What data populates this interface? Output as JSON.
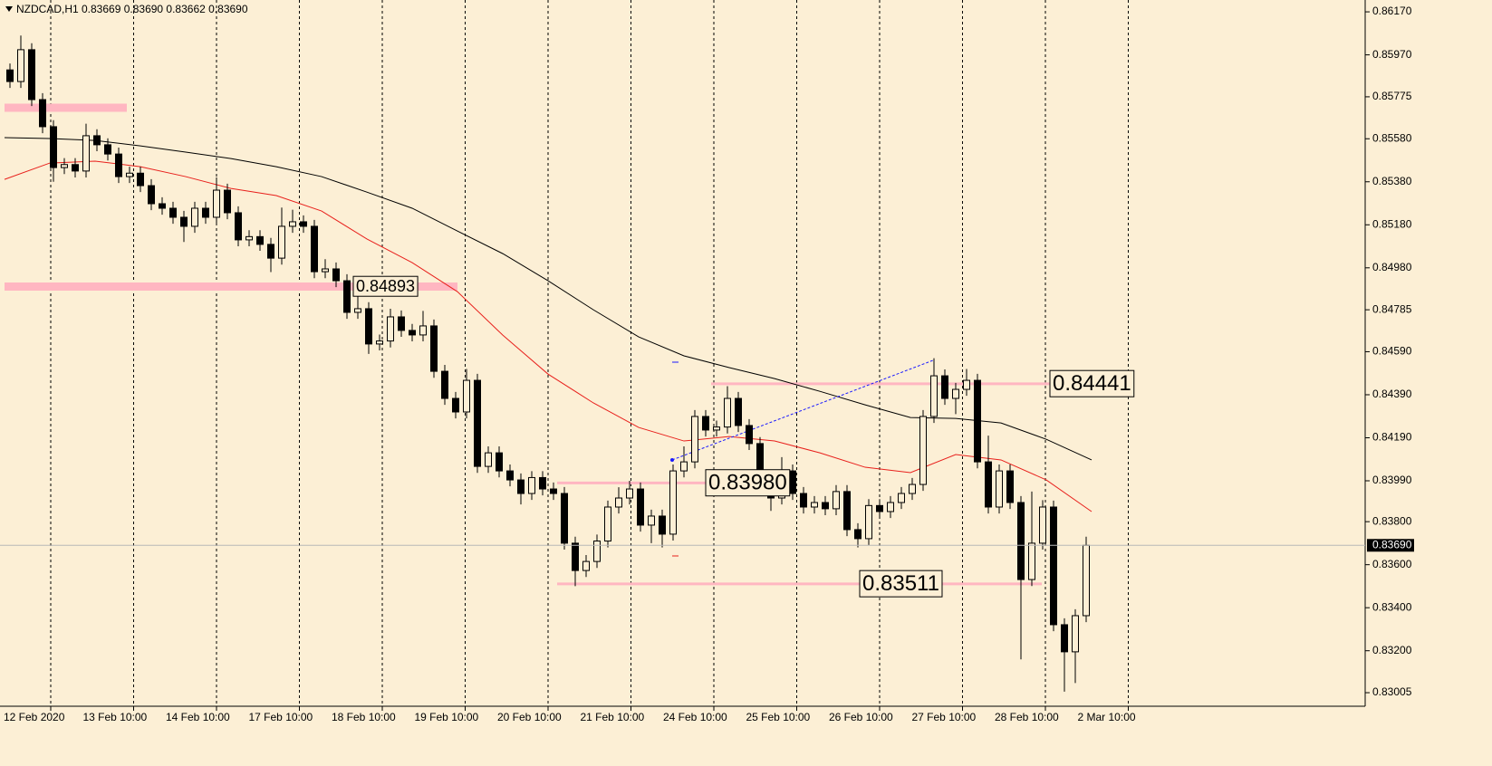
{
  "chart_data": {
    "type": "candlestick",
    "symbol": "NZDCAD,H1",
    "header_prices": "0.83669 0.83690 0.83662 0.83690",
    "ylim": [
      0.82942,
      0.86225
    ],
    "yticks": [
      {
        "value": 0.8617,
        "label": "0.86170"
      },
      {
        "value": 0.8597,
        "label": "0.85970"
      },
      0.85775,
      {
        "value": 0.8558,
        "label": "0.85580"
      },
      {
        "value": 0.8538,
        "label": "0.85380"
      },
      {
        "value": 0.8518,
        "label": "0.85180"
      },
      {
        "value": 0.8498,
        "label": "0.84980"
      },
      0.84785,
      {
        "value": 0.8459,
        "label": "0.84590"
      },
      {
        "value": 0.8439,
        "label": "0.84390"
      },
      {
        "value": 0.8419,
        "label": "0.84190"
      },
      {
        "value": 0.8399,
        "label": "0.83990"
      },
      {
        "value": 0.838,
        "label": "0.83800"
      },
      {
        "value": 0.836,
        "label": "0.83600"
      },
      {
        "value": 0.834,
        "label": "0.83400"
      },
      {
        "value": 0.832,
        "label": "0.83200"
      },
      0.83005
    ],
    "time_labels": [
      "12 Feb 2020",
      "13 Feb 10:00",
      "14 Feb 10:00",
      "17 Feb 10:00",
      "18 Feb 10:00",
      "19 Feb 10:00",
      "20 Feb 10:00",
      "21 Feb 10:00",
      "24 Feb 10:00",
      "25 Feb 10:00",
      "26 Feb 10:00",
      "27 Feb 10:00",
      "28 Feb 10:00",
      "2 Mar 10:00"
    ],
    "candles": [
      [
        0.859,
        0.8593,
        0.85816,
        0.85846
      ],
      [
        0.85846,
        0.8606,
        0.85816,
        0.85994
      ],
      [
        0.85994,
        0.86024,
        0.85732,
        0.85762
      ],
      [
        0.85762,
        0.85792,
        0.85606,
        0.85636
      ],
      [
        0.85636,
        0.85666,
        0.8538,
        0.85446
      ],
      [
        0.85446,
        0.8549,
        0.85416,
        0.8546
      ],
      [
        0.8546,
        0.8549,
        0.854,
        0.8543
      ],
      [
        0.8543,
        0.8565,
        0.854,
        0.85594
      ],
      [
        0.85594,
        0.85624,
        0.85522,
        0.85552
      ],
      [
        0.85552,
        0.85582,
        0.85479,
        0.85509
      ],
      [
        0.85509,
        0.85539,
        0.85374,
        0.85404
      ],
      [
        0.85404,
        0.8545,
        0.85374,
        0.8542
      ],
      [
        0.8542,
        0.8545,
        0.85332,
        0.85362
      ],
      [
        0.85362,
        0.85392,
        0.85248,
        0.85278
      ],
      [
        0.85278,
        0.85308,
        0.85227,
        0.85257
      ],
      [
        0.85257,
        0.85287,
        0.85185,
        0.85215
      ],
      [
        0.85215,
        0.85245,
        0.851,
        0.85173
      ],
      [
        0.85173,
        0.85287,
        0.85143,
        0.85257
      ],
      [
        0.85257,
        0.85287,
        0.85185,
        0.85215
      ],
      [
        0.85215,
        0.854,
        0.85185,
        0.85341
      ],
      [
        0.85341,
        0.85371,
        0.85206,
        0.85236
      ],
      [
        0.85236,
        0.85266,
        0.8508,
        0.8511
      ],
      [
        0.8511,
        0.85155,
        0.8508,
        0.85125
      ],
      [
        0.85125,
        0.85155,
        0.85059,
        0.85089
      ],
      [
        0.85089,
        0.85119,
        0.8496,
        0.85025
      ],
      [
        0.85025,
        0.8526,
        0.84995,
        0.85173
      ],
      [
        0.85173,
        0.8525,
        0.85143,
        0.85194
      ],
      [
        0.85194,
        0.85224,
        0.85143,
        0.85173
      ],
      [
        0.85173,
        0.85203,
        0.84932,
        0.84962
      ],
      [
        0.84962,
        0.8502,
        0.84932,
        0.84975
      ],
      [
        0.84975,
        0.85005,
        0.8489,
        0.8492
      ],
      [
        0.8492,
        0.8495,
        0.84743,
        0.84773
      ],
      [
        0.84773,
        0.8488,
        0.84743,
        0.8479
      ],
      [
        0.8479,
        0.8482,
        0.8458,
        0.84626
      ],
      [
        0.84626,
        0.8467,
        0.84596,
        0.8464
      ],
      [
        0.8464,
        0.8479,
        0.8461,
        0.84752
      ],
      [
        0.84752,
        0.84782,
        0.84659,
        0.84689
      ],
      [
        0.84689,
        0.84719,
        0.84638,
        0.84668
      ],
      [
        0.84668,
        0.8478,
        0.84638,
        0.8471
      ],
      [
        0.8471,
        0.8474,
        0.84469,
        0.84499
      ],
      [
        0.84499,
        0.84529,
        0.84343,
        0.84373
      ],
      [
        0.84373,
        0.84403,
        0.8428,
        0.8431
      ],
      [
        0.8431,
        0.8451,
        0.8428,
        0.84457
      ],
      [
        0.84457,
        0.84487,
        0.84027,
        0.84057
      ],
      [
        0.84057,
        0.8415,
        0.84027,
        0.8412
      ],
      [
        0.8412,
        0.8415,
        0.84006,
        0.84036
      ],
      [
        0.84036,
        0.84066,
        0.83964,
        0.83994
      ],
      [
        0.83994,
        0.84024,
        0.8388,
        0.83931
      ],
      [
        0.83931,
        0.84035,
        0.83901,
        0.84005
      ],
      [
        0.84005,
        0.84035,
        0.83922,
        0.83952
      ],
      [
        0.83952,
        0.83982,
        0.83901,
        0.83931
      ],
      [
        0.83931,
        0.83961,
        0.8367,
        0.837
      ],
      [
        0.837,
        0.8373,
        0.835,
        0.83573
      ],
      [
        0.83573,
        0.83645,
        0.83543,
        0.83615
      ],
      [
        0.83615,
        0.8374,
        0.83585,
        0.8371
      ],
      [
        0.8371,
        0.83898,
        0.8368,
        0.83868
      ],
      [
        0.83868,
        0.8396,
        0.83838,
        0.8391
      ],
      [
        0.8391,
        0.8399,
        0.8388,
        0.83952
      ],
      [
        0.83952,
        0.83982,
        0.83754,
        0.83784
      ],
      [
        0.83784,
        0.83856,
        0.837,
        0.83826
      ],
      [
        0.83826,
        0.83856,
        0.8368,
        0.83742
      ],
      [
        0.83742,
        0.84066,
        0.83712,
        0.84036
      ],
      [
        0.84036,
        0.8415,
        0.84006,
        0.84078
      ],
      [
        0.84078,
        0.84319,
        0.84048,
        0.84289
      ],
      [
        0.84289,
        0.84319,
        0.84196,
        0.84226
      ],
      [
        0.84226,
        0.8427,
        0.84196,
        0.8424
      ],
      [
        0.8424,
        0.8443,
        0.8421,
        0.84373
      ],
      [
        0.84373,
        0.84403,
        0.84217,
        0.84247
      ],
      [
        0.84247,
        0.84277,
        0.84133,
        0.84163
      ],
      [
        0.84163,
        0.84193,
        0.83964,
        0.83994
      ],
      [
        0.83994,
        0.84024,
        0.8385,
        0.8391
      ],
      [
        0.8391,
        0.841,
        0.8388,
        0.84036
      ],
      [
        0.84036,
        0.84066,
        0.83901,
        0.83931
      ],
      [
        0.83931,
        0.83961,
        0.83838,
        0.83868
      ],
      [
        0.83868,
        0.83919,
        0.83838,
        0.83889
      ],
      [
        0.83889,
        0.83919,
        0.8383,
        0.8386
      ],
      [
        0.8386,
        0.8397,
        0.8383,
        0.8394
      ],
      [
        0.8394,
        0.8397,
        0.83733,
        0.83763
      ],
      [
        0.83763,
        0.83793,
        0.8368,
        0.83721
      ],
      [
        0.83721,
        0.83905,
        0.83691,
        0.83875
      ],
      [
        0.83875,
        0.83905,
        0.83817,
        0.83847
      ],
      [
        0.83847,
        0.83919,
        0.83817,
        0.83889
      ],
      [
        0.83889,
        0.83961,
        0.83859,
        0.83931
      ],
      [
        0.83931,
        0.84003,
        0.83901,
        0.83973
      ],
      [
        0.83973,
        0.84319,
        0.83943,
        0.84289
      ],
      [
        0.84289,
        0.8456,
        0.84259,
        0.84478
      ],
      [
        0.84478,
        0.84508,
        0.84343,
        0.84373
      ],
      [
        0.84373,
        0.84445,
        0.843,
        0.84415
      ],
      [
        0.84415,
        0.8451,
        0.84385,
        0.84457
      ],
      [
        0.84457,
        0.84487,
        0.84048,
        0.84078
      ],
      [
        0.84078,
        0.842,
        0.83838,
        0.83868
      ],
      [
        0.83868,
        0.84066,
        0.83838,
        0.84036
      ],
      [
        0.84036,
        0.84066,
        0.83859,
        0.83889
      ],
      [
        0.83889,
        0.83919,
        0.8316,
        0.83531
      ],
      [
        0.83531,
        0.8394,
        0.83501,
        0.837
      ],
      [
        0.837,
        0.839,
        0.8367,
        0.83868
      ],
      [
        0.83868,
        0.83898,
        0.83291,
        0.83321
      ],
      [
        0.83321,
        0.83351,
        0.8301,
        0.83195
      ],
      [
        0.83195,
        0.83393,
        0.8305,
        0.83363
      ],
      [
        0.83363,
        0.8373,
        0.83333,
        0.8369
      ]
    ],
    "moving_averages": [
      {
        "color": "#000000",
        "values": [
          0.85585,
          0.85581,
          0.85572,
          0.85547,
          0.85518,
          0.85488,
          0.8545,
          0.85404,
          0.85332,
          0.85257,
          0.85151,
          0.85046,
          0.8492,
          0.84785,
          0.84659,
          0.84571,
          0.84516,
          0.84465,
          0.84406,
          0.84343,
          0.84284,
          0.8428,
          0.84259,
          0.84183,
          0.84087
        ]
      },
      {
        "color": "#e8201c",
        "values": [
          0.85391,
          0.85467,
          0.85476,
          0.8545,
          0.85404,
          0.85349,
          0.85316,
          0.85244,
          0.85114,
          0.85004,
          0.84869,
          0.84667,
          0.84486,
          0.84352,
          0.84238,
          0.84175,
          0.84196,
          0.84175,
          0.8412,
          0.84053,
          0.84028,
          0.84112,
          0.84087,
          0.83994,
          0.83847
        ]
      }
    ],
    "levels": [
      0.85724,
      0.84893,
      0.84441,
      {
        "value": 0.8398,
        "label": "0.83980"
      },
      0.83511
    ],
    "level_color": "#ffb6c1",
    "trendline": [
      0.84087,
      0.8455
    ],
    "current_price": {
      "value": 0.8369,
      "label": "0.83690"
    }
  }
}
